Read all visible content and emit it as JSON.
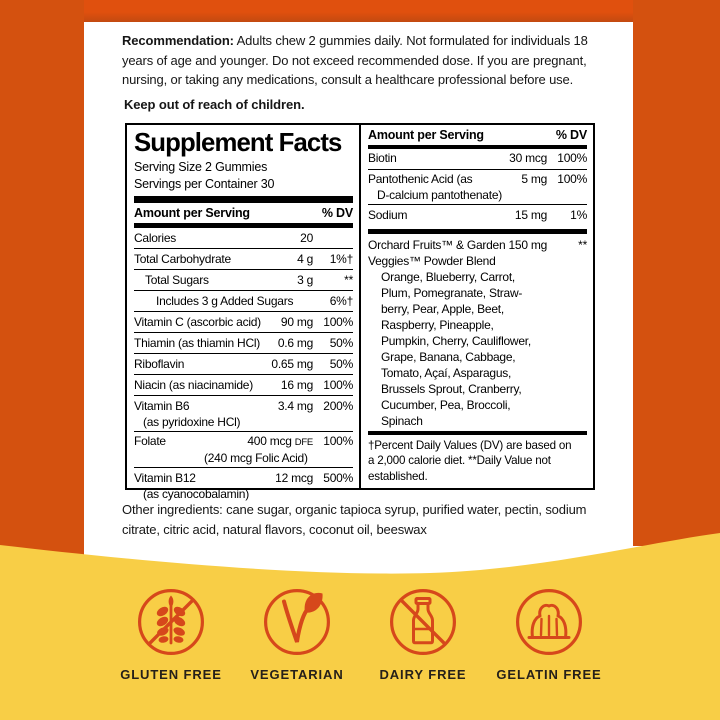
{
  "colors": {
    "frame_orange": "#d4510f",
    "frame_orange_top": "#e0500e",
    "background_yellow": "#f8ce46",
    "icon_red": "#d6481b",
    "text_black": "#1b1b1b"
  },
  "recommendation": {
    "label": "Recommendation:",
    "body": "Adults chew 2 gummies daily. Not formulated for individuals 18 years of age and younger. Do not exceed recommended dose. If you are pregnant, nursing, or taking any medications, consult a healthcare professional before use.",
    "warning": "Keep out of reach of children."
  },
  "panel": {
    "title": "Supplement Facts",
    "serving_size": "Serving Size 2 Gummies",
    "servings_per_container": "Servings per Container 30",
    "col_header": {
      "amount": "Amount per Serving",
      "dv": "% DV"
    },
    "left_rows": [
      {
        "name": "Calories",
        "amount": "20",
        "dv": ""
      },
      {
        "name": "Total Carbohydrate",
        "amount": "4 g",
        "dv": "1%†"
      },
      {
        "name": "Total Sugars",
        "amount": "3 g",
        "dv": "**",
        "indent": 1
      },
      {
        "name": "Includes 3 g Added Sugars",
        "amount": "",
        "dv": "6%†",
        "indent": 2
      },
      {
        "name": "Vitamin C (ascorbic acid)",
        "amount": "90 mg",
        "dv": "100%"
      },
      {
        "name": "Thiamin (as thiamin HCl)",
        "amount": "0.6 mg",
        "dv": "50%"
      },
      {
        "name": "Riboflavin",
        "amount": "0.65 mg",
        "dv": "50%"
      },
      {
        "name": "Niacin (as niacinamide)",
        "amount": "16 mg",
        "dv": "100%"
      },
      {
        "name": "Vitamin B6",
        "name2": "(as pyridoxine HCl)",
        "amount": "3.4 mg",
        "dv": "200%"
      },
      {
        "name": "Folate",
        "amount": "400 mcg",
        "amount_small": "DFE",
        "amount2": "(240 mcg Folic Acid)",
        "dv": "100%"
      },
      {
        "name": "Vitamin B12",
        "name2": "(as cyanocobalamin)",
        "amount": "12 mcg",
        "dv": "500%"
      }
    ],
    "right_rows": [
      {
        "name": "Biotin",
        "amount": "30 mcg",
        "dv": "100%"
      },
      {
        "name": "Pantothenic Acid (as",
        "name2": "D-calcium pantothenate)",
        "amount": "5 mg",
        "dv": "100%"
      },
      {
        "name": "Sodium",
        "amount": "15 mg",
        "dv": "1%"
      }
    ],
    "blend": {
      "name_line1": "Orchard Fruits™ & Garden",
      "name_line2": "Veggies™ Powder Blend",
      "amount": "150 mg",
      "dv": "**",
      "ingredients": [
        "Orange, Blueberry, Carrot,",
        "Plum, Pomegranate, Straw-",
        "berry, Pear, Apple, Beet,",
        "Raspberry, Pineapple,",
        "Pumpkin, Cherry, Cauliflower,",
        "Grape, Banana, Cabbage,",
        "Tomato, Açaí, Asparagus,",
        "Brussels Sprout, Cranberry,",
        "Cucumber, Pea, Broccoli,",
        "Spinach"
      ]
    },
    "footnote_lines": [
      "†Percent Daily Values (DV) are based on",
      "a 2,000 calorie diet. **Daily Value not",
      "established."
    ]
  },
  "other_ingredients": "Other ingredients: cane sugar, organic tapioca syrup, purified water, pectin, sodium citrate, citric acid, natural flavors, coconut oil, beeswax",
  "badges": [
    {
      "label": "GLUTEN FREE",
      "icon": "wheat-crossed"
    },
    {
      "label": "VEGETARIAN",
      "icon": "leaf-v"
    },
    {
      "label": "DAIRY FREE",
      "icon": "milk-bottle-crossed"
    },
    {
      "label": "GELATIN FREE",
      "icon": "gelatin-mold-crossed"
    }
  ]
}
